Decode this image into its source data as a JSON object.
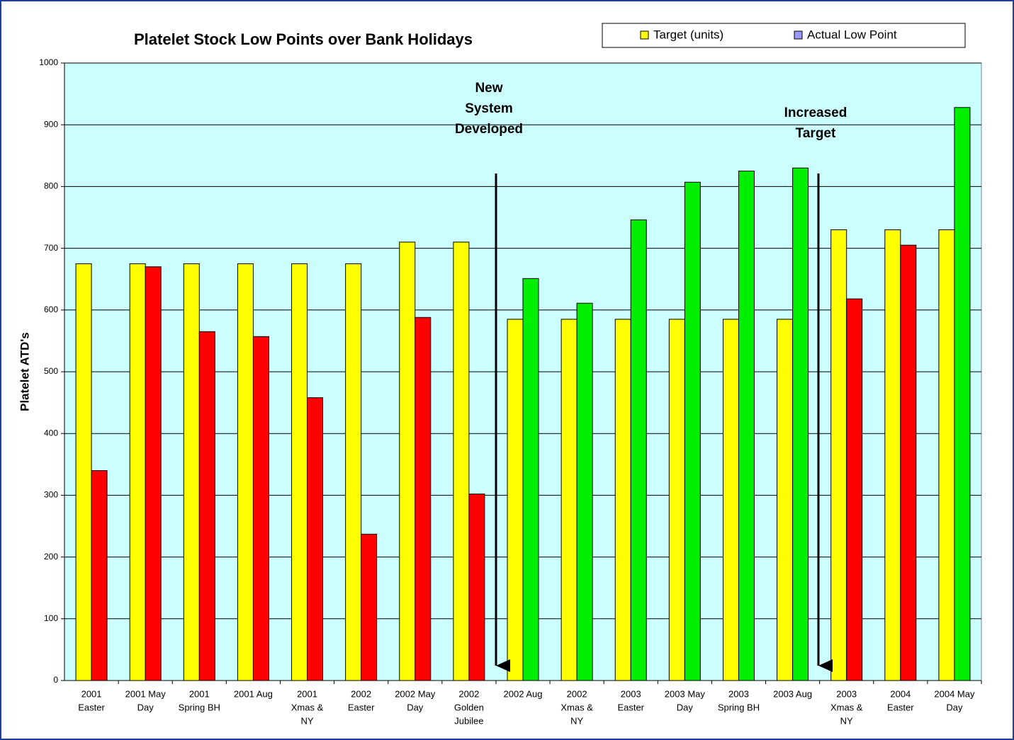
{
  "chart_data": {
    "type": "bar",
    "title": "Platelet Stock Low Points over Bank Holidays",
    "y_label": "Platelet ATD's",
    "categories": [
      [
        "2001",
        "Easter"
      ],
      [
        "2001 May",
        "Day"
      ],
      [
        "2001",
        "Spring BH"
      ],
      [
        "2001 Aug"
      ],
      [
        "2001",
        "Xmas &",
        "NY"
      ],
      [
        "2002",
        "Easter"
      ],
      [
        "2002 May",
        "Day"
      ],
      [
        "2002",
        "Golden",
        "Jubilee"
      ],
      [
        "2002 Aug"
      ],
      [
        "2002",
        "Xmas &",
        "NY"
      ],
      [
        "2003",
        "Easter"
      ],
      [
        "2003 May",
        "Day"
      ],
      [
        "2003",
        "Spring BH"
      ],
      [
        "2003 Aug"
      ],
      [
        "2003",
        "Xmas &",
        "NY"
      ],
      [
        "2004",
        "Easter"
      ],
      [
        "2004 May",
        "Day"
      ]
    ],
    "series": [
      {
        "name": "Target (units)",
        "color": "#ffff00",
        "values": [
          675,
          675,
          675,
          675,
          675,
          675,
          710,
          710,
          585,
          585,
          585,
          585,
          585,
          585,
          730,
          730,
          730
        ]
      },
      {
        "name": "Actual Low Point",
        "color": "#9999ff",
        "values": [
          340,
          670,
          565,
          557,
          458,
          237,
          588,
          302,
          651,
          611,
          746,
          807,
          825,
          830,
          618,
          705,
          928
        ],
        "point_colors": [
          "#ff0000",
          "#ff0000",
          "#ff0000",
          "#ff0000",
          "#ff0000",
          "#ff0000",
          "#ff0000",
          "#ff0000",
          "#00ee00",
          "#00ee00",
          "#00ee00",
          "#00ee00",
          "#00ee00",
          "#00ee00",
          "#ff0000",
          "#ff0000",
          "#00ee00"
        ]
      }
    ],
    "ylim": [
      0,
      1000
    ],
    "yticks": [
      0,
      100,
      200,
      300,
      400,
      500,
      600,
      700,
      800,
      900,
      1000
    ],
    "grid": true,
    "annotations": [
      {
        "text": [
          "New",
          "System",
          "Developed"
        ]
      },
      {
        "text": [
          "Increased",
          "Target"
        ]
      }
    ]
  }
}
